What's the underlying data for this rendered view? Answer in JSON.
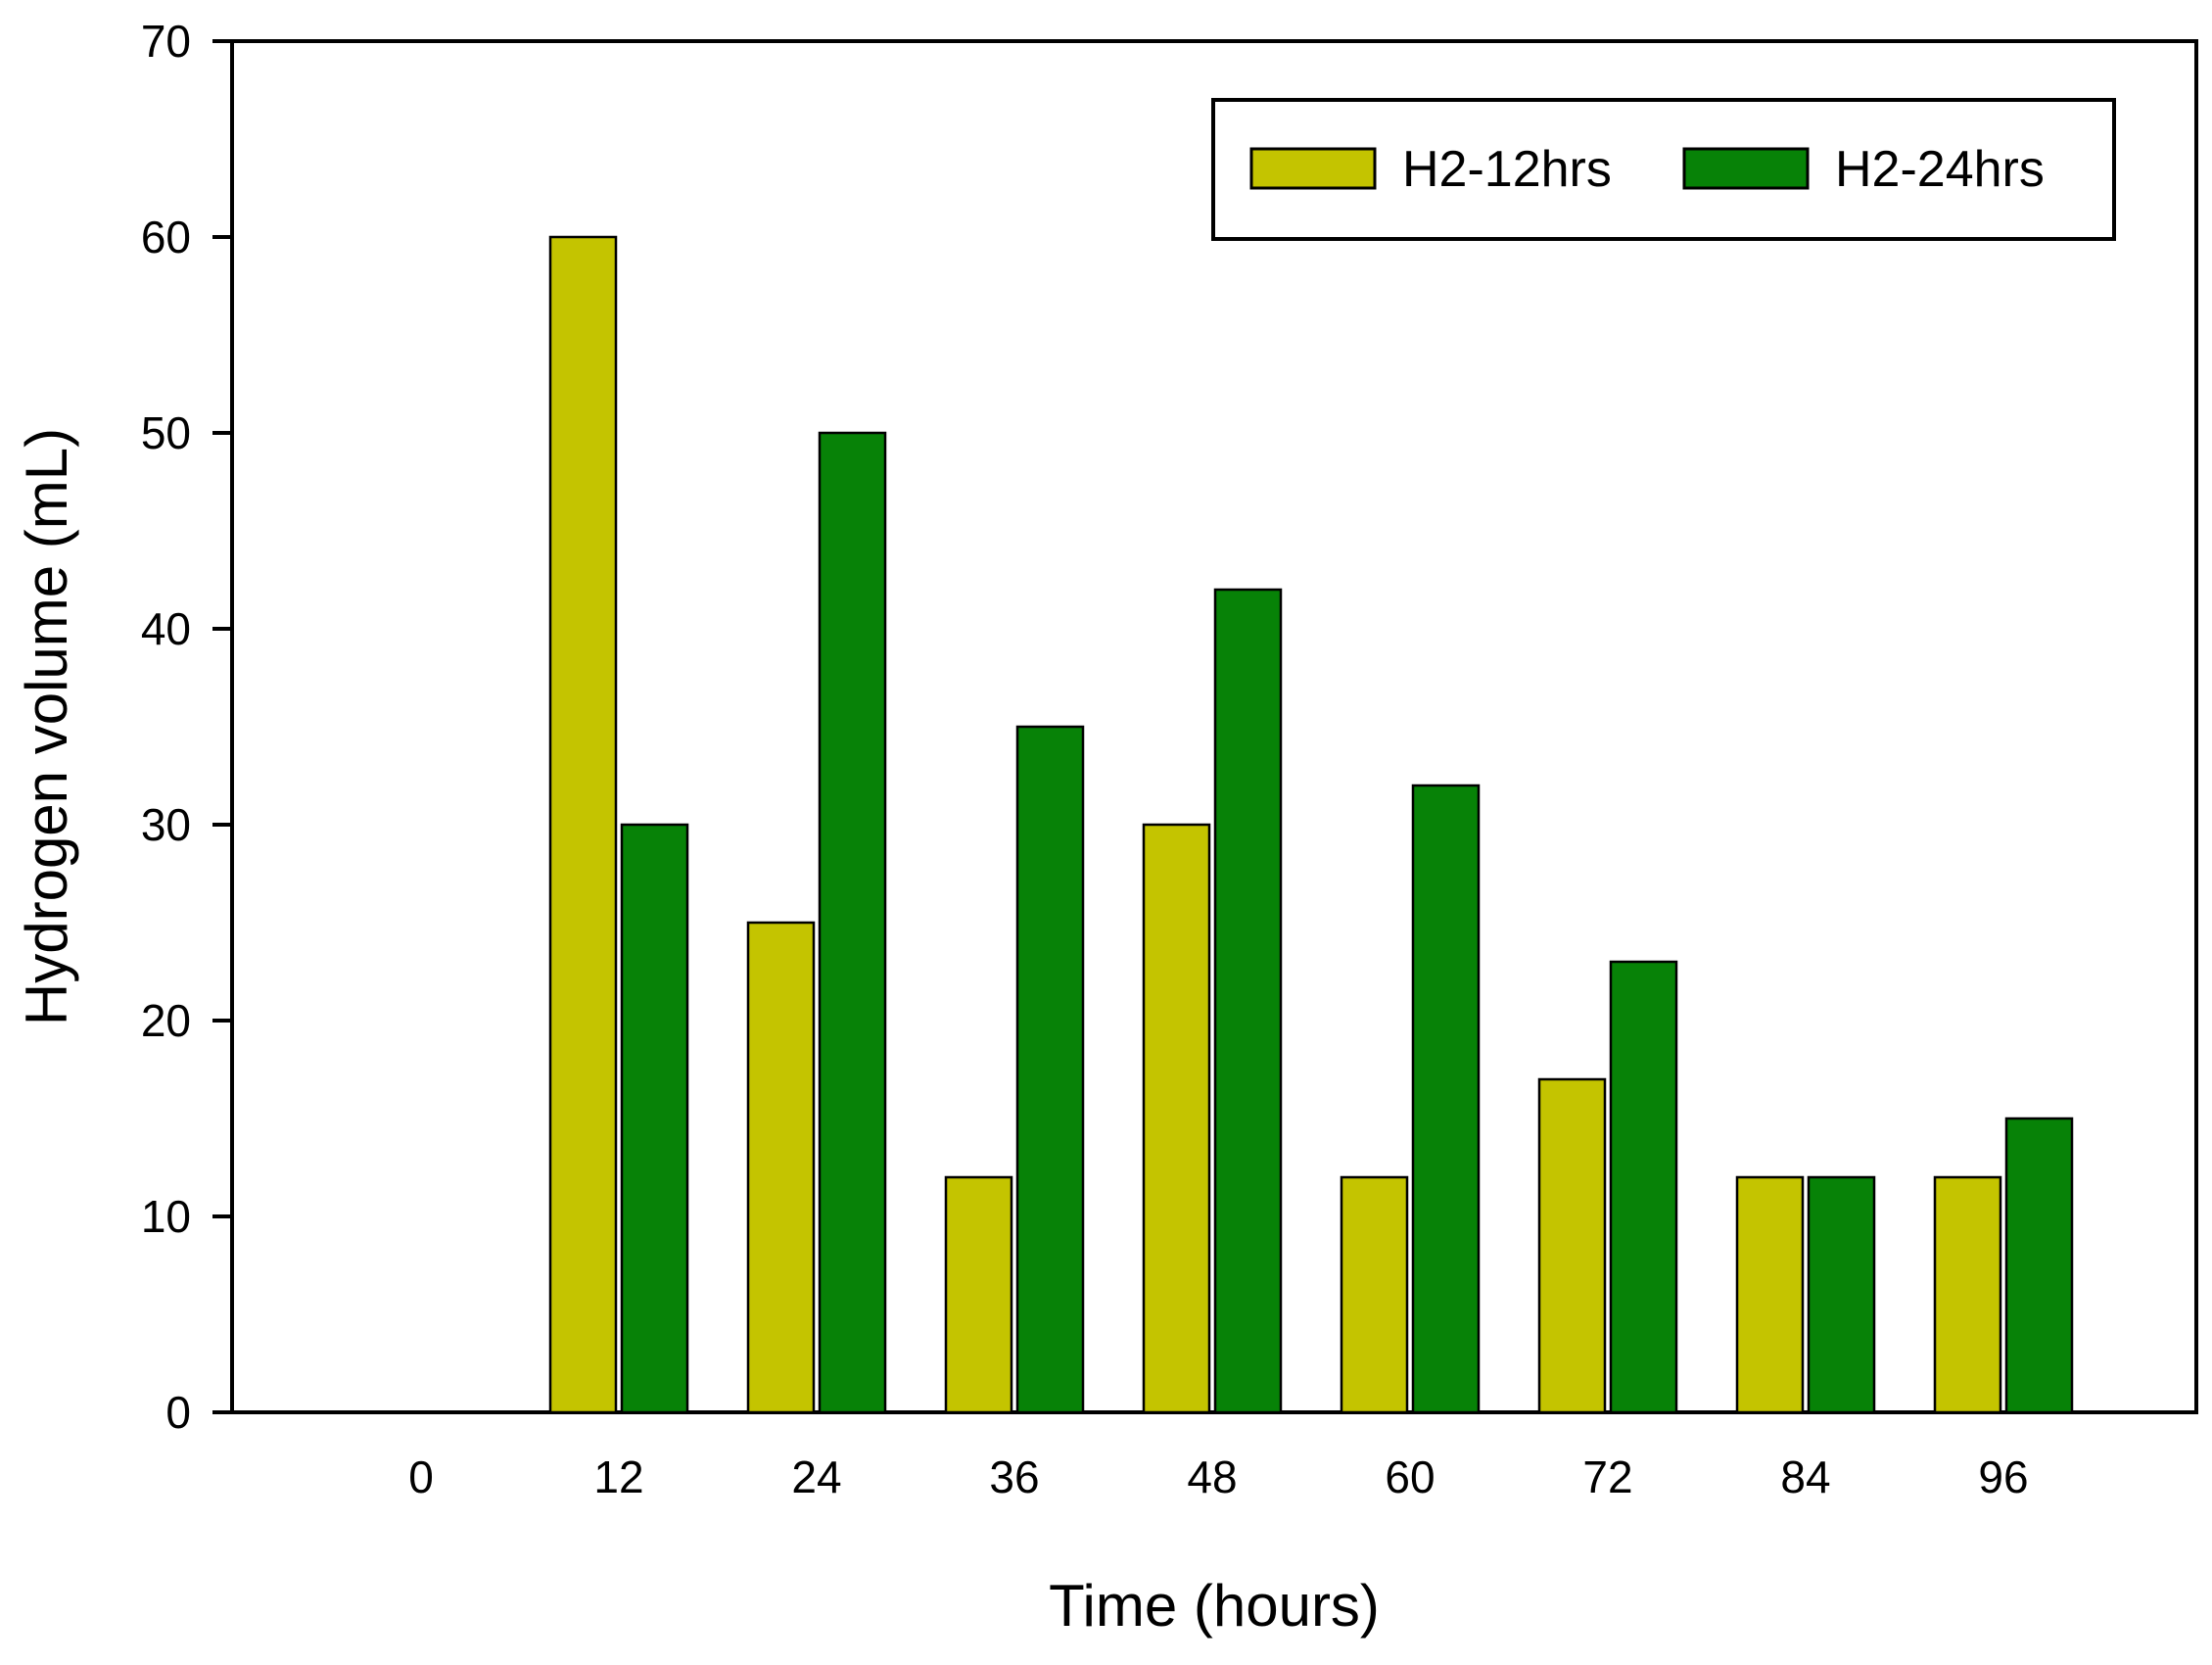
{
  "chart_data": {
    "type": "bar",
    "title": "",
    "xlabel": "Time (hours)",
    "ylabel": "Hydrogen volume (mL)",
    "categories": [
      "0",
      "12",
      "24",
      "36",
      "48",
      "60",
      "72",
      "84",
      "96"
    ],
    "series": [
      {
        "name": "H2-12hrs",
        "color": "#c4c400",
        "values": [
          0,
          60,
          25,
          12,
          30,
          12,
          17,
          12,
          12
        ]
      },
      {
        "name": "H2-24hrs",
        "color": "#078207",
        "values": [
          0,
          30,
          50,
          35,
          42,
          32,
          23,
          12,
          15
        ]
      }
    ],
    "ylim": [
      0,
      70
    ],
    "yticks": [
      0,
      10,
      20,
      30,
      40,
      50,
      60,
      70
    ],
    "grid": false,
    "legend_position": "top-right"
  }
}
